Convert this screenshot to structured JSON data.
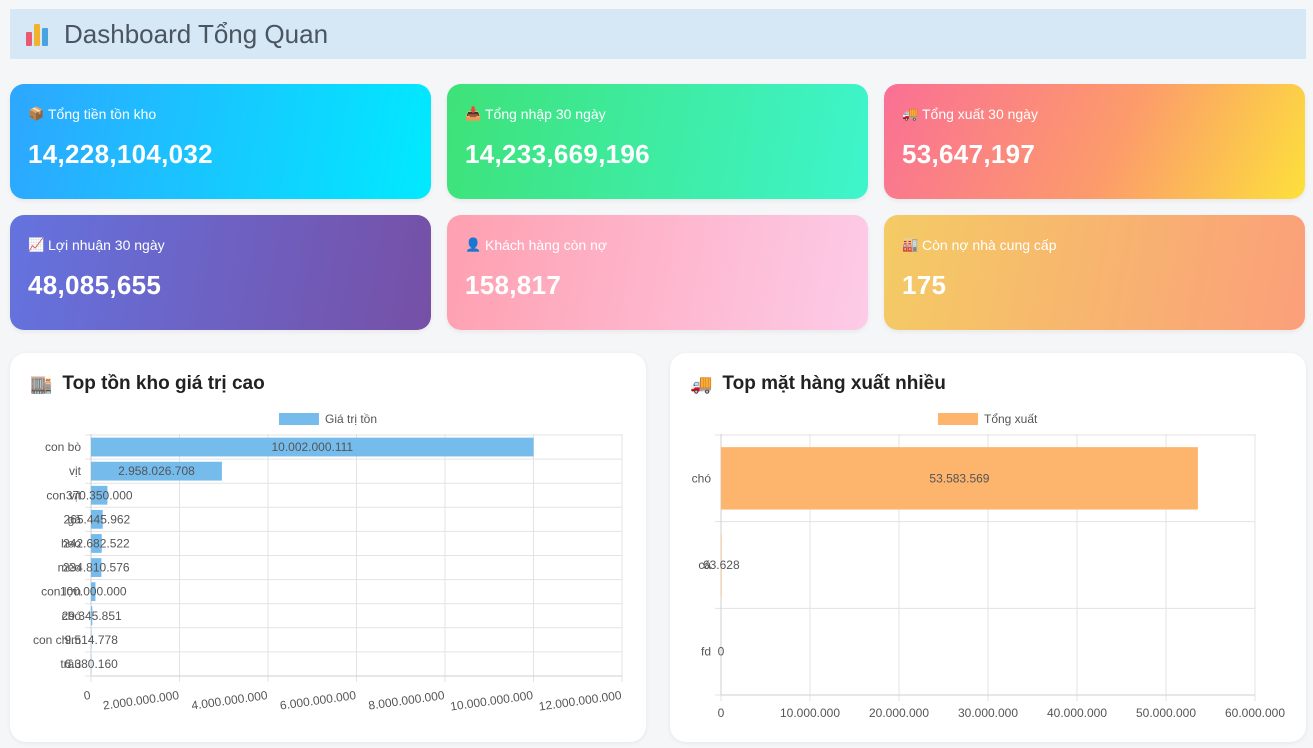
{
  "header": {
    "title": "Dashboard Tổng Quan",
    "icon": "bar-chart-icon"
  },
  "cards": [
    {
      "label": "Tổng tiền tồn kho",
      "value": "14,228,104,032",
      "icon": "package-icon",
      "glyph": "📦"
    },
    {
      "label": "Tổng nhập 30 ngày",
      "value": "14,233,669,196",
      "icon": "inbox-icon",
      "glyph": "📥"
    },
    {
      "label": "Tổng xuất 30 ngày",
      "value": "53,647,197",
      "icon": "truck-icon",
      "glyph": "🚚"
    },
    {
      "label": "Lợi nhuận 30 ngày",
      "value": "48,085,655",
      "icon": "trend-up-icon",
      "glyph": "📈"
    },
    {
      "label": "Khách hàng còn nợ",
      "value": "158,817",
      "icon": "user-icon",
      "glyph": "👤"
    },
    {
      "label": "Còn nợ nhà cung cấp",
      "value": "175",
      "icon": "factory-icon",
      "glyph": "🏭"
    }
  ],
  "panels": [
    {
      "title": "Top tồn kho giá trị cao",
      "icon": "warehouse-icon",
      "glyph": "🏬"
    },
    {
      "title": "Top mặt hàng xuất nhiều",
      "icon": "truck-icon",
      "glyph": "🚚"
    }
  ],
  "chart_data": [
    {
      "type": "bar",
      "orientation": "horizontal",
      "legend": "top",
      "grid": true,
      "color": "#75bbec",
      "categories": [
        "con bò",
        "vịt",
        "con vịt",
        "gà",
        "heo",
        "mèo",
        "con lợn",
        "chó",
        "con chim",
        "trâu"
      ],
      "series": [
        {
          "name": "Giá trị tồn",
          "values": [
            10002000111,
            2958026708,
            370350000,
            265445962,
            242682522,
            234810576,
            100000000,
            29345851,
            9514778,
            6380160
          ]
        }
      ],
      "data_labels": [
        "10.002.000.111",
        "2.958.026.708",
        "370.350.000",
        "265.445.962",
        "242.682.522",
        "234.810.576",
        "100.000.000",
        "29.345.851",
        "9.514.778",
        "6.380.160"
      ],
      "xlim": [
        0,
        12000000000
      ],
      "x_ticks": [
        "0",
        "2.000.000.000",
        "4.000.000.000",
        "6.000.000.000",
        "8.000.000.000",
        "10.000.000.000",
        "12.000.000.000"
      ]
    },
    {
      "type": "bar",
      "orientation": "horizontal",
      "legend": "top",
      "grid": true,
      "color": "#fdb46d",
      "categories": [
        "chó",
        "cá",
        "fd"
      ],
      "series": [
        {
          "name": "Tổng xuất",
          "values": [
            53583569,
            63628,
            0
          ]
        }
      ],
      "data_labels": [
        "53.583.569",
        "63.628",
        "0"
      ],
      "xlim": [
        0,
        60000000
      ],
      "x_ticks": [
        "0",
        "10.000.000",
        "20.000.000",
        "30.000.000",
        "40.000.000",
        "50.000.000",
        "60.000.000"
      ]
    }
  ]
}
